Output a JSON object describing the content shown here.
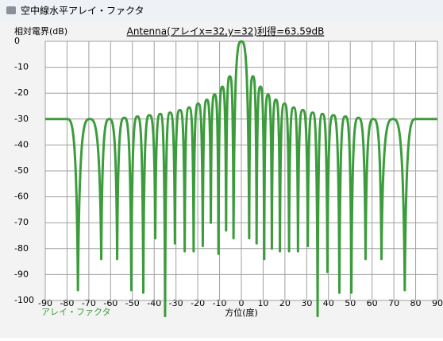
{
  "window": {
    "title": "空中線水平アレイ・ファクタ"
  },
  "chart_data": {
    "type": "line",
    "title": "Antenna(アレイx=32,y=32)利得=63.59dB",
    "y_label": "相対電界(dB)",
    "x_label": "方位(度)",
    "x": [
      -90,
      -80,
      -75,
      -69.6,
      -64.3,
      -60.6,
      -57,
      -53.7,
      -50.5,
      -47.7,
      -45,
      -42.2,
      -39.5,
      -37.2,
      -35,
      -32.7,
      -30.5,
      -28.2,
      -26,
      -24,
      -21.9,
      -19.8,
      -17.7,
      -15.85,
      -14,
      -12.25,
      -10.5,
      -8.75,
      -7,
      -5.3,
      -3.6,
      0,
      3.6,
      5.3,
      7,
      8.75,
      10.5,
      12.25,
      14,
      15.85,
      17.7,
      19.8,
      21.9,
      24,
      26,
      28.2,
      30.5,
      32.7,
      35,
      37.2,
      39.5,
      42.2,
      45,
      47.7,
      50.5,
      53.7,
      57,
      60.6,
      64.3,
      69.6,
      75,
      80,
      90
    ],
    "series": [
      {
        "name": "アレイ・ファクタ",
        "color": "#3c9c3c",
        "values": [
          -30,
          -30,
          -96,
          -30,
          -84,
          -30,
          -84,
          -29.5,
          -96,
          -29,
          -97,
          -28.5,
          -76,
          -28,
          -106,
          -27.5,
          -78,
          -26.5,
          -81,
          -25.5,
          -81,
          -24,
          -79,
          -22.5,
          -70,
          -20.5,
          -82,
          -17.5,
          -73,
          -13.5,
          -76,
          0,
          -76,
          -13.5,
          -78,
          -17.5,
          -84,
          -20.5,
          -80,
          -22.5,
          -81,
          -24,
          -81,
          -25.5,
          -81,
          -26.5,
          -79,
          -27.5,
          -106,
          -28,
          -89,
          -28.5,
          -97,
          -29,
          -97,
          -29.5,
          -84,
          -30,
          -84,
          -30,
          -96,
          -30,
          -30
        ]
      }
    ],
    "xlim": [
      -90,
      90
    ],
    "ylim": [
      -100,
      0
    ],
    "xticks": [
      -90,
      -80,
      -70,
      -60,
      -50,
      -40,
      -30,
      -20,
      -10,
      0,
      10,
      20,
      30,
      40,
      50,
      60,
      70,
      80,
      90
    ],
    "yticks": [
      0,
      -10,
      -20,
      -30,
      -40,
      -50,
      -60,
      -70,
      -80,
      -90,
      -100
    ],
    "grid": true
  }
}
